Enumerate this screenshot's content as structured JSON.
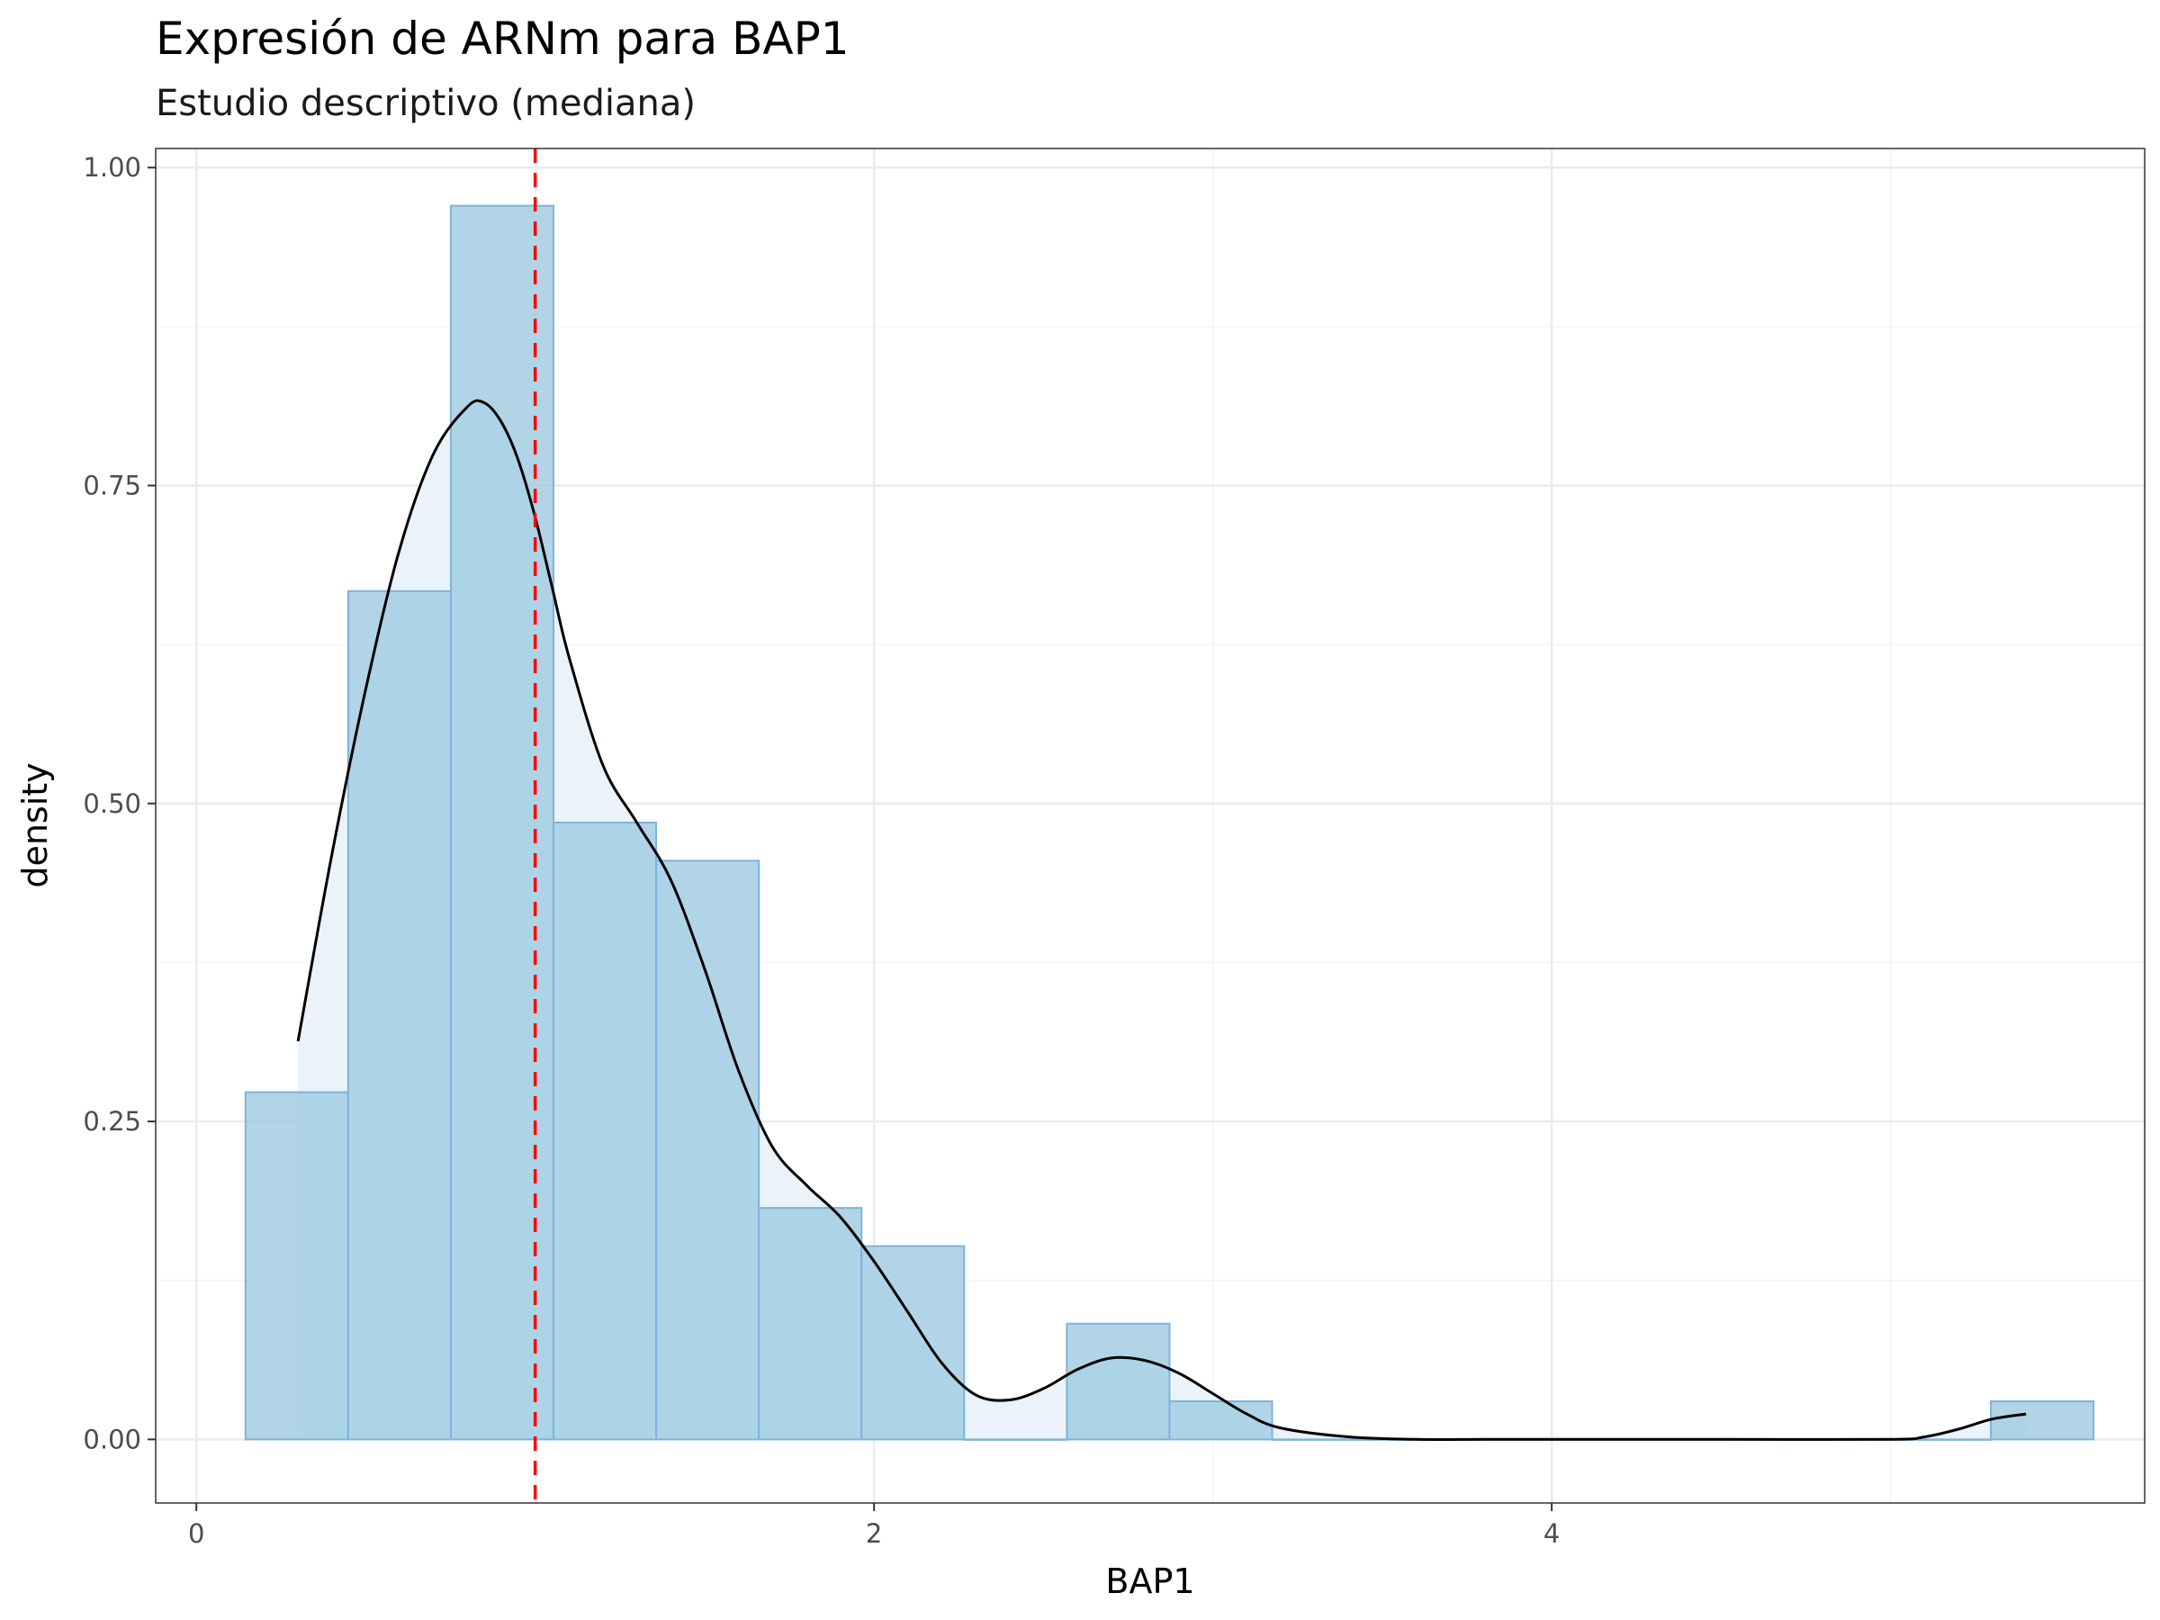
{
  "chart_data": {
    "type": "histogram",
    "title": "Expresión de ARNm para BAP1",
    "subtitle": "Estudio descriptivo (mediana)",
    "xlabel": "BAP1",
    "ylabel": "density",
    "xlim": [
      -0.12,
      5.75
    ],
    "ylim": [
      -0.05,
      1.015
    ],
    "x_ticks": [
      0,
      2,
      4
    ],
    "x_tick_labels": [
      "0",
      "2",
      "4"
    ],
    "y_ticks": [
      0,
      0.25,
      0.5,
      0.75,
      1.0
    ],
    "y_tick_labels": [
      "0.00",
      "0.25",
      "0.50",
      "0.75",
      "1.00"
    ],
    "grid": true,
    "bins": [
      {
        "x0": 0.145,
        "x1": 0.448,
        "density": 0.273
      },
      {
        "x0": 0.448,
        "x1": 0.751,
        "density": 0.667
      },
      {
        "x0": 0.751,
        "x1": 1.054,
        "density": 0.97
      },
      {
        "x0": 1.054,
        "x1": 1.357,
        "density": 0.485
      },
      {
        "x0": 1.357,
        "x1": 1.66,
        "density": 0.455
      },
      {
        "x0": 1.66,
        "x1": 1.963,
        "density": 0.182
      },
      {
        "x0": 1.963,
        "x1": 2.266,
        "density": 0.152
      },
      {
        "x0": 2.266,
        "x1": 2.569,
        "density": 0.0
      },
      {
        "x0": 2.569,
        "x1": 2.872,
        "density": 0.091
      },
      {
        "x0": 2.872,
        "x1": 3.175,
        "density": 0.03
      },
      {
        "x0": 3.175,
        "x1": 3.478,
        "density": 0.0
      },
      {
        "x0": 3.478,
        "x1": 3.781,
        "density": 0.0
      },
      {
        "x0": 3.781,
        "x1": 4.084,
        "density": 0.0
      },
      {
        "x0": 4.084,
        "x1": 4.387,
        "density": 0.0
      },
      {
        "x0": 4.387,
        "x1": 4.69,
        "density": 0.0
      },
      {
        "x0": 4.69,
        "x1": 4.993,
        "density": 0.0
      },
      {
        "x0": 4.993,
        "x1": 5.296,
        "density": 0.0
      },
      {
        "x0": 5.296,
        "x1": 5.599,
        "density": 0.03
      }
    ],
    "density_curve": {
      "x": [
        0.3,
        0.4,
        0.5,
        0.6,
        0.7,
        0.8,
        0.85,
        0.9,
        0.95,
        1.0,
        1.05,
        1.1,
        1.2,
        1.3,
        1.4,
        1.5,
        1.6,
        1.7,
        1.8,
        1.9,
        2.0,
        2.1,
        2.2,
        2.3,
        2.4,
        2.5,
        2.6,
        2.7,
        2.8,
        2.9,
        3.0,
        3.1,
        3.2,
        3.4,
        3.6,
        3.8,
        4.0,
        4.5,
        5.0,
        5.1,
        5.2,
        5.3,
        5.4
      ],
      "y": [
        0.313,
        0.46,
        0.59,
        0.7,
        0.775,
        0.812,
        0.815,
        0.8,
        0.77,
        0.725,
        0.67,
        0.615,
        0.53,
        0.485,
        0.44,
        0.37,
        0.29,
        0.23,
        0.2,
        0.175,
        0.14,
        0.1,
        0.06,
        0.035,
        0.031,
        0.04,
        0.055,
        0.064,
        0.062,
        0.052,
        0.036,
        0.02,
        0.009,
        0.002,
        0.0,
        0.0,
        0.0,
        0.0,
        0.0,
        0.002,
        0.008,
        0.016,
        0.02
      ]
    },
    "median": 1.0,
    "bar_fill": "#9ECAE1",
    "bar_fill_opacity": 0.8,
    "bar_outline": "#7FB3DA",
    "density_fill": "#EAF3FA",
    "density_line": "#000000",
    "median_line_color": "#FF0000",
    "grid_major_color": "#EBEBEB",
    "grid_minor_color": "#F4F4F4",
    "panel_border_color": "#333333"
  }
}
